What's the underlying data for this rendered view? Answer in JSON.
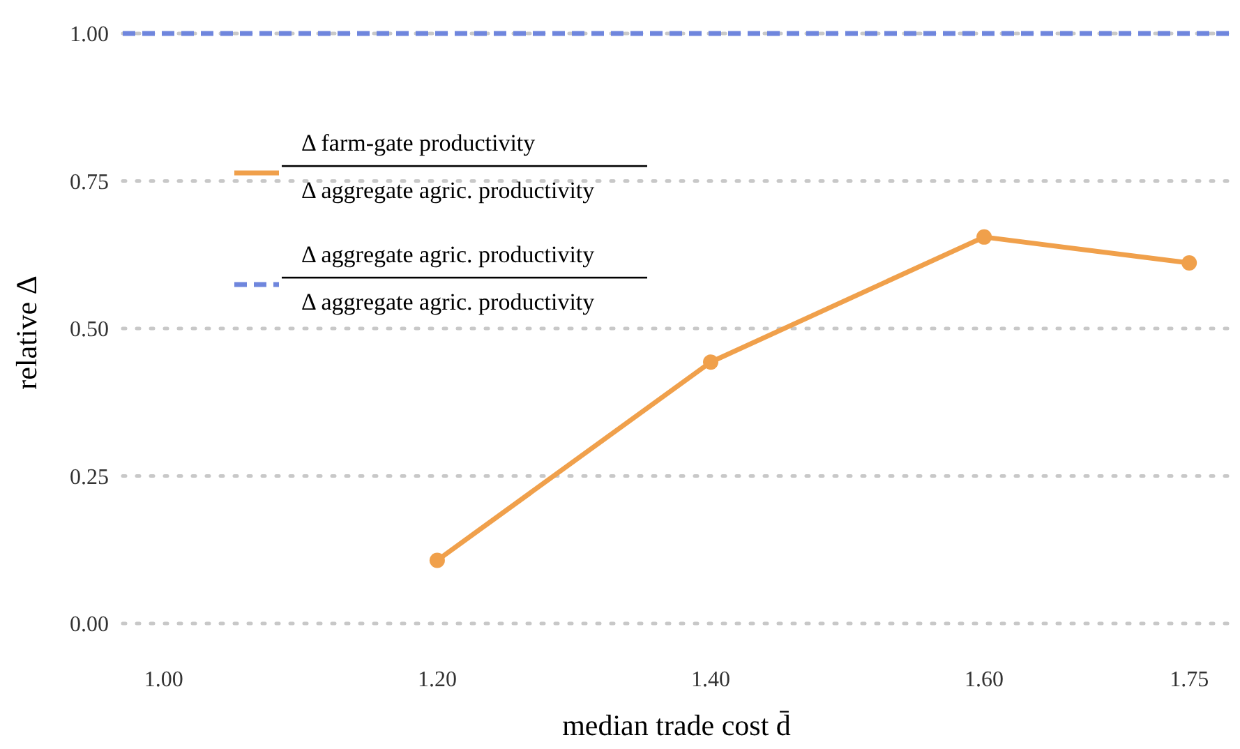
{
  "chart_data": {
    "type": "line",
    "xlabel": "median trade cost d̄",
    "ylabel": "relative Δ",
    "xlim": [
      0.97,
      1.78
    ],
    "ylim": [
      0,
      1
    ],
    "xticks": [
      {
        "value": 1,
        "label": "1.00"
      },
      {
        "value": 1.2,
        "label": "1.20"
      },
      {
        "value": 1.4,
        "label": "1.40"
      },
      {
        "value": 1.6,
        "label": "1.60"
      },
      {
        "value": 1.75,
        "label": "1.75"
      }
    ],
    "yticks": [
      {
        "value": 0,
        "label": "0.00"
      },
      {
        "value": 0.25,
        "label": "0.25"
      },
      {
        "value": 0.5,
        "label": "0.50"
      },
      {
        "value": 0.75,
        "label": "0.75"
      },
      {
        "value": 1,
        "label": "1.00"
      }
    ],
    "grid": "y",
    "legend": "top left",
    "series": [
      {
        "name": "Δ farm-gate productivity\nΔ aggregate agric. productivity",
        "color": "#f0a04b",
        "x": [
          1.2,
          1.4,
          1.6,
          1.75
        ],
        "values": [
          0.107,
          0.443,
          0.655,
          0.611
        ],
        "marker": "circle",
        "line_style": "solid"
      },
      {
        "name": "Δ aggregate agric. productivity\nΔ aggregate agric. productivity",
        "color": "#6f86dd",
        "x": [
          0.97,
          1.78
        ],
        "values": [
          1,
          1
        ],
        "marker": "none",
        "line_style": "dashed"
      }
    ]
  }
}
